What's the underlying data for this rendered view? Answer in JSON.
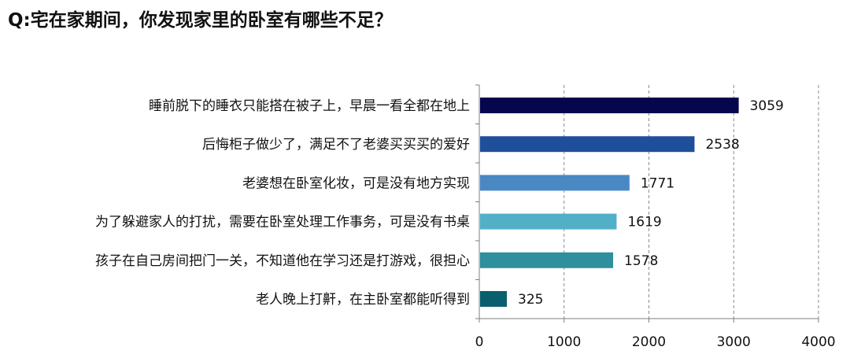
{
  "title": "Q:宅在家期间，你发现家里的卧室有哪些不足？",
  "chart_data": {
    "type": "bar",
    "orientation": "horizontal",
    "categories": [
      "睡前脱下的睡衣只能搭在被子上，早晨一看全都在地上",
      "后悔柜子做少了，满足不了老婆买买买的爱好",
      "老婆想在卧室化妆，可是没有地方实现",
      "为了躲避家人的打扰，需要在卧室处理工作事务，可是没有书桌",
      "孩子在自己房间把门一关，不知道他在学习还是打游戏，很担心",
      "老人晚上打鼾，在主卧室都能听得到"
    ],
    "values": [
      3059,
      2538,
      1771,
      1619,
      1578,
      325
    ],
    "data_labels": [
      "3059",
      "2538",
      "1771",
      "1619",
      "1578",
      "325"
    ],
    "colors": [
      "#06064f",
      "#1f4f9a",
      "#4a88c4",
      "#52b0c6",
      "#2f8f9d",
      "#0a5f6e"
    ],
    "xlim": [
      0,
      4000
    ],
    "xticks": [
      0,
      1000,
      2000,
      3000,
      4000
    ],
    "xtick_labels": [
      "0",
      "1000",
      "2000",
      "3000",
      "4000"
    ],
    "grid": "vertical dashed",
    "legend": "none"
  }
}
